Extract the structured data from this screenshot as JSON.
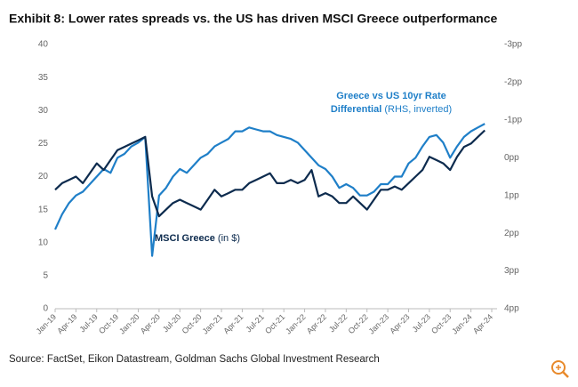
{
  "chart_data": {
    "type": "line",
    "title": "Exhibit 8: Lower rates spreads vs. the US has driven MSCI Greece outperformance",
    "source": "Source: FactSet, Eikon Datastream, Goldman Sachs Global Investment Research",
    "annotations": [
      {
        "lines": [
          [
            "Greece vs US 10yr Rate"
          ],
          [
            "Differential",
            " (RHS, inverted)"
          ]
        ],
        "color": "#1f7fc8"
      },
      {
        "lines": [
          [
            "MSCI Greece",
            " (in $)"
          ]
        ],
        "color": "#0d2b4e"
      }
    ],
    "x": [
      "2019-01",
      "2019-02",
      "2019-03",
      "2019-04",
      "2019-05",
      "2019-06",
      "2019-07",
      "2019-08",
      "2019-09",
      "2019-10",
      "2019-11",
      "2019-12",
      "2020-01",
      "2020-02",
      "2020-03",
      "2020-04",
      "2020-05",
      "2020-06",
      "2020-07",
      "2020-08",
      "2020-09",
      "2020-10",
      "2020-11",
      "2020-12",
      "2021-01",
      "2021-02",
      "2021-03",
      "2021-04",
      "2021-05",
      "2021-06",
      "2021-07",
      "2021-08",
      "2021-09",
      "2021-10",
      "2021-11",
      "2021-12",
      "2022-01",
      "2022-02",
      "2022-03",
      "2022-04",
      "2022-05",
      "2022-06",
      "2022-07",
      "2022-08",
      "2022-09",
      "2022-10",
      "2022-11",
      "2022-12",
      "2023-01",
      "2023-02",
      "2023-03",
      "2023-04",
      "2023-05",
      "2023-06",
      "2023-07",
      "2023-08",
      "2023-09",
      "2023-10",
      "2023-11",
      "2023-12",
      "2024-01",
      "2024-02",
      "2024-03"
    ],
    "series": [
      {
        "name": "MSCI Greece",
        "color": "#0d2b4e",
        "axis": "y",
        "values": [
          18,
          19,
          19.5,
          20,
          19,
          20.5,
          22,
          21,
          22.5,
          24,
          24.5,
          25,
          25.5,
          26,
          17,
          14,
          15,
          16,
          16.5,
          16,
          15.5,
          15,
          16.5,
          18,
          17,
          17.5,
          18,
          18,
          19,
          19.5,
          20,
          20.5,
          19,
          19,
          19.5,
          19,
          19.5,
          21,
          17,
          17.5,
          17,
          16,
          16,
          17,
          16,
          15,
          16.5,
          18,
          18,
          18.5,
          18,
          19,
          20,
          21,
          23,
          22.5,
          22,
          21,
          23,
          24.5,
          25,
          26,
          27
        ]
      },
      {
        "name": "Greece vs US 10yr Rate Differential",
        "color": "#1f7fc8",
        "axis": "y2",
        "values": [
          1.9,
          1.5,
          1.2,
          1.0,
          0.9,
          0.7,
          0.5,
          0.3,
          0.4,
          0.0,
          -0.1,
          -0.3,
          -0.4,
          -0.55,
          2.6,
          1.0,
          0.8,
          0.5,
          0.3,
          0.4,
          0.2,
          0.0,
          -0.1,
          -0.3,
          -0.4,
          -0.5,
          -0.7,
          -0.7,
          -0.8,
          -0.75,
          -0.7,
          -0.7,
          -0.6,
          -0.55,
          -0.5,
          -0.4,
          -0.2,
          0.0,
          0.2,
          0.3,
          0.5,
          0.8,
          0.7,
          0.8,
          1.0,
          1.0,
          0.9,
          0.7,
          0.7,
          0.5,
          0.5,
          0.15,
          0.0,
          -0.3,
          -0.55,
          -0.6,
          -0.4,
          0.0,
          -0.3,
          -0.55,
          -0.7,
          -0.8,
          -0.9
        ]
      }
    ],
    "xlim": [
      "2019-01",
      "2024-04"
    ],
    "xticks": [
      {
        "value": "2019-01",
        "label": "Jan-19"
      },
      {
        "value": "2019-04",
        "label": "Apr-19"
      },
      {
        "value": "2019-07",
        "label": "Jul-19"
      },
      {
        "value": "2019-10",
        "label": "Oct-19"
      },
      {
        "value": "2020-01",
        "label": "Jan-20"
      },
      {
        "value": "2020-04",
        "label": "Apr-20"
      },
      {
        "value": "2020-07",
        "label": "Jul-20"
      },
      {
        "value": "2020-10",
        "label": "Oct-20"
      },
      {
        "value": "2021-01",
        "label": "Jan-21"
      },
      {
        "value": "2021-04",
        "label": "Apr-21"
      },
      {
        "value": "2021-07",
        "label": "Jul-21"
      },
      {
        "value": "2021-10",
        "label": "Oct-21"
      },
      {
        "value": "2022-01",
        "label": "Jan-22"
      },
      {
        "value": "2022-04",
        "label": "Apr-22"
      },
      {
        "value": "2022-07",
        "label": "Jul-22"
      },
      {
        "value": "2022-10",
        "label": "Oct-22"
      },
      {
        "value": "2023-01",
        "label": "Jan-23"
      },
      {
        "value": "2023-04",
        "label": "Apr-23"
      },
      {
        "value": "2023-07",
        "label": "Jul-23"
      },
      {
        "value": "2023-10",
        "label": "Oct-23"
      },
      {
        "value": "2024-01",
        "label": "Jan-24"
      },
      {
        "value": "2024-04",
        "label": "Apr-24"
      }
    ],
    "ylim": [
      0,
      40
    ],
    "yticks": [
      0,
      5,
      10,
      15,
      20,
      25,
      30,
      35,
      40
    ],
    "y2lim": [
      -3,
      4
    ],
    "y2_inverted": true,
    "y2ticks": [
      {
        "value": -3,
        "label": "-3pp"
      },
      {
        "value": -2,
        "label": "-2pp"
      },
      {
        "value": -1,
        "label": "-1pp"
      },
      {
        "value": 0,
        "label": "0pp"
      },
      {
        "value": 1,
        "label": "1pp"
      },
      {
        "value": 2,
        "label": "2pp"
      },
      {
        "value": 3,
        "label": "3pp"
      },
      {
        "value": 4,
        "label": "4pp"
      }
    ],
    "grid": false
  }
}
